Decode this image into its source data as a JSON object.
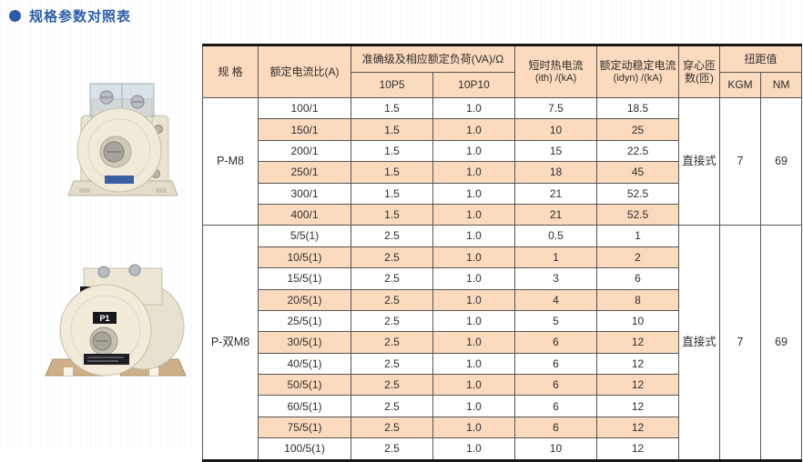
{
  "title": {
    "bullet_icon": "circle",
    "text": "规格参数对照表",
    "color": "#2a5caa"
  },
  "colors": {
    "accent_blue": "#2a5caa",
    "header_bg": "#fbdabe",
    "row_alt_bg": "#fbdabe",
    "row_bg": "#ffffff",
    "inner_border": "#555555",
    "outer_border": "#161616",
    "text": "#2e2e2e"
  },
  "products": [
    {
      "name": "P-M8 穿心式电流互感器照片",
      "labels": []
    },
    {
      "name": "P-双M8 穿心式电流互感器照片",
      "labels": [
        "S1",
        "S2",
        "P1"
      ]
    }
  ],
  "table": {
    "headers": {
      "spec": "规 格",
      "ratio": "额定电流比(A)",
      "accuracy_group": "准确级及相应额定负荷(VA)/Ω",
      "p5": "10P5",
      "p10": "10P10",
      "ith_line1": "短时热电流",
      "ith_line2": "(ith) /(kA)",
      "idyn_line1": "额定动稳定电流",
      "idyn_line2": "(idyn) /(kA)",
      "turns_line1": "穿心匝",
      "turns_line2": "数(匝)",
      "torque_group": "扭距值",
      "kgm": "KGM",
      "nm": "NM"
    },
    "sections": [
      {
        "model": "P-M8",
        "mounting": "直接式",
        "kgm": "7",
        "nm": "69",
        "rows": [
          [
            "100/1",
            "1.5",
            "1.0",
            "7.5",
            "18.5"
          ],
          [
            "150/1",
            "1.5",
            "1.0",
            "10",
            "25"
          ],
          [
            "200/1",
            "1.5",
            "1.0",
            "15",
            "22.5"
          ],
          [
            "250/1",
            "1.5",
            "1.0",
            "18",
            "45"
          ],
          [
            "300/1",
            "1.5",
            "1.0",
            "21",
            "52.5"
          ],
          [
            "400/1",
            "1.5",
            "1.0",
            "21",
            "52.5"
          ]
        ]
      },
      {
        "model": "P-双M8",
        "mounting": "直接式",
        "kgm": "7",
        "nm": "69",
        "rows": [
          [
            "5/5(1)",
            "2.5",
            "1.0",
            "0.5",
            "1"
          ],
          [
            "10/5(1)",
            "2.5",
            "1.0",
            "1",
            "2"
          ],
          [
            "15/5(1)",
            "2.5",
            "1.0",
            "3",
            "6"
          ],
          [
            "20/5(1)",
            "2.5",
            "1.0",
            "4",
            "8"
          ],
          [
            "25/5(1)",
            "2.5",
            "1.0",
            "5",
            "10"
          ],
          [
            "30/5(1)",
            "2.5",
            "1.0",
            "6",
            "12"
          ],
          [
            "40/5(1)",
            "2.5",
            "1.0",
            "6",
            "12"
          ],
          [
            "50/5(1)",
            "2.5",
            "1.0",
            "6",
            "12"
          ],
          [
            "60/5(1)",
            "2.5",
            "1.0",
            "6",
            "12"
          ],
          [
            "75/5(1)",
            "2.5",
            "1.0",
            "6",
            "12"
          ],
          [
            "100/5(1)",
            "2.5",
            "1.0",
            "10",
            "12"
          ]
        ]
      }
    ]
  }
}
